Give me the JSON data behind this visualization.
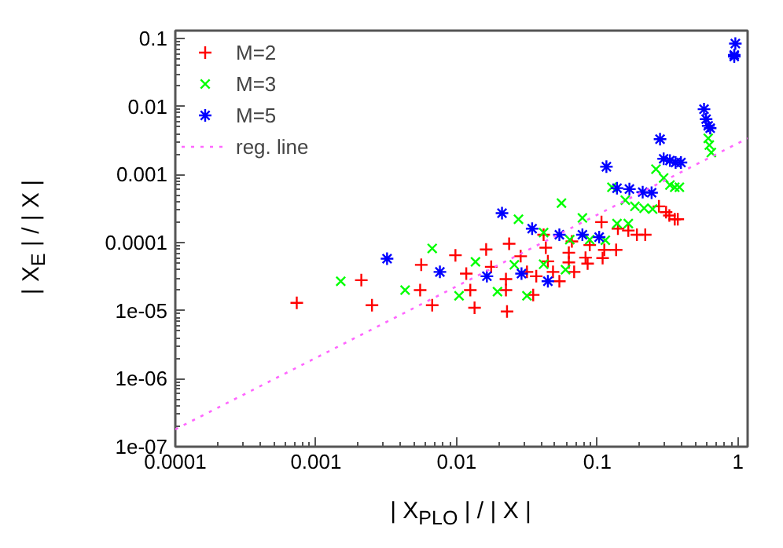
{
  "chart_data": {
    "type": "scatter",
    "xlabel": "| X$_{PLO}$ | / | X |",
    "ylabel": "| X$_{E}$ | / | X |",
    "log": "xy",
    "xlim": [
      0.0001,
      1.17
    ],
    "ylim": [
      1e-07,
      0.13
    ],
    "xticks": [
      0.0001,
      0.001,
      0.01,
      0.1,
      1
    ],
    "yticks": [
      {
        "value": 1e-07,
        "label": "1e-07"
      },
      {
        "value": 1e-06,
        "label": "1e-06"
      },
      {
        "value": 1e-05,
        "label": "1e-05"
      },
      0.0001,
      0.001,
      0.01,
      0.1
    ],
    "grid": false,
    "legend": "top left",
    "series": [
      {
        "name": "M=2",
        "color": "#ff0000",
        "marker": "cross",
        "x": [
          0.00073,
          0.0021,
          0.0025,
          0.0056,
          0.0055,
          0.0067,
          0.0098,
          0.0117,
          0.0125,
          0.0134,
          0.0162,
          0.0176,
          0.0224,
          0.0224,
          0.0228,
          0.0236,
          0.0285,
          0.0316,
          0.035,
          0.0368,
          0.0415,
          0.043,
          0.0445,
          0.0484,
          0.0537,
          0.0627,
          0.0627,
          0.0659,
          0.0684,
          0.0824,
          0.0853,
          0.0883,
          0.107,
          0.109,
          0.112,
          0.136,
          0.14,
          0.166,
          0.191,
          0.219,
          0.274,
          0.308,
          0.325,
          0.355,
          0.373
        ],
        "values": [
          1.3e-05,
          2.8e-05,
          1.2e-05,
          4.7e-05,
          2e-05,
          1.2e-05,
          6.5e-05,
          3.5e-05,
          2e-05,
          1.1e-05,
          7.9e-05,
          4.4e-05,
          2.9e-05,
          2e-05,
          9.7e-06,
          9.6e-05,
          6.3e-05,
          3.7e-05,
          1.7e-05,
          3.2e-05,
          0.00013,
          8.4e-05,
          5.3e-05,
          3.7e-05,
          2.7e-05,
          7.1e-05,
          5.1e-05,
          0.000104,
          3.7e-05,
          6e-05,
          4.9e-05,
          9.2e-05,
          0.0002,
          5.9e-05,
          7.8e-05,
          7.8e-05,
          0.00016,
          0.00015,
          0.00013,
          0.00013,
          0.00034,
          0.00028,
          0.00025,
          0.00022,
          0.00022
        ]
      },
      {
        "name": "M=3",
        "color": "#00ff00",
        "marker": "x",
        "x": [
          0.0015,
          0.0043,
          0.0067,
          0.0104,
          0.0136,
          0.0195,
          0.0257,
          0.0275,
          0.0316,
          0.0415,
          0.0415,
          0.0556,
          0.0594,
          0.0637,
          0.0783,
          0.0883,
          0.114,
          0.127,
          0.138,
          0.166,
          0.158,
          0.185,
          0.215,
          0.247,
          0.261,
          0.296,
          0.328,
          0.355,
          0.383,
          0.614,
          0.625,
          0.646
        ],
        "values": [
          2.7e-05,
          2e-05,
          8.2e-05,
          1.65e-05,
          5.2e-05,
          1.9e-05,
          4.7e-05,
          0.00022,
          1.65e-05,
          0.00014,
          4.8e-05,
          0.00038,
          4e-05,
          0.00011,
          0.00023,
          0.00011,
          0.000108,
          0.00065,
          0.00019,
          0.00019,
          0.00042,
          0.00034,
          0.00032,
          0.00031,
          0.0012,
          0.00089,
          0.0007,
          0.00065,
          0.00065,
          0.0034,
          0.0027,
          0.0021
        ]
      },
      {
        "name": "M=5",
        "color": "#0000ff",
        "x": [
          0.0032,
          0.0076,
          0.0164,
          0.021,
          0.0289,
          0.0344,
          0.0445,
          0.0537,
          0.0783,
          0.103,
          0.116,
          0.138,
          0.169,
          0.21,
          0.243,
          0.279,
          0.296,
          0.328,
          0.36,
          0.393,
          0.573,
          0.593,
          0.614,
          0.634,
          0.957,
          0.94,
          0.94
        ],
        "values": [
          5.8e-05,
          3.7e-05,
          3.2e-05,
          0.00027,
          3.5e-05,
          0.00016,
          2.7e-05,
          0.00013,
          0.00013,
          0.00012,
          0.0013,
          0.00063,
          0.00061,
          0.00055,
          0.00054,
          0.0033,
          0.0017,
          0.0016,
          0.0015,
          0.0015,
          0.0091,
          0.0065,
          0.0052,
          0.0048,
          0.084,
          0.057,
          0.054
        ]
      },
      {
        "name": "reg. line",
        "type": "line",
        "color": "#ff66ff",
        "line_style": "dotted",
        "x": [
          0.0001,
          1.17
        ],
        "values": [
          1.8e-07,
          0.0034
        ]
      }
    ]
  }
}
